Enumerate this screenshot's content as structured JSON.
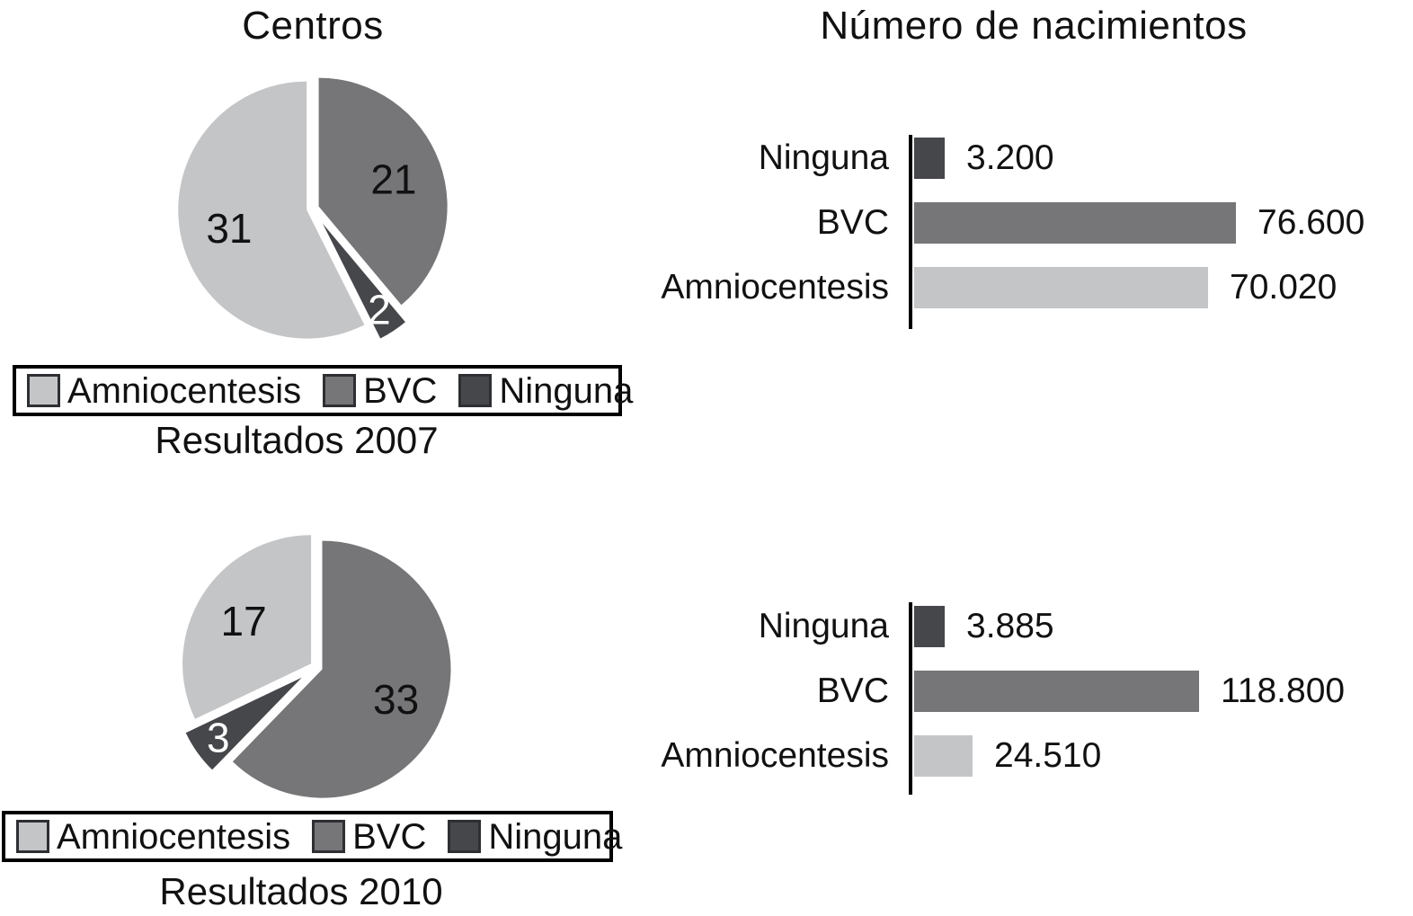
{
  "background": "#ffffff",
  "palette": {
    "amniocentesis": "#c4c5c7",
    "bvc": "#767679",
    "ninguna": "#46474b",
    "axis": "#000000",
    "text": "#111111"
  },
  "chart_data": [
    {
      "id": "pie-2007",
      "type": "pie",
      "title": "Centros",
      "caption": "Resultados 2007",
      "start_angle_deg": 0,
      "direction": "clockwise",
      "legend_position": "bottom",
      "legend": [
        "Amniocentesis",
        "BVC",
        "Ninguna"
      ],
      "slices": [
        {
          "label": "BVC",
          "value": 21,
          "color": "#767679"
        },
        {
          "label": "Ninguna",
          "value": 2,
          "color": "#46474b"
        },
        {
          "label": "Amniocentesis",
          "value": 31,
          "color": "#c4c5c7"
        }
      ]
    },
    {
      "id": "bar-2007",
      "type": "bar",
      "title": "Número de nacimientos",
      "orientation": "horizontal",
      "grid": false,
      "xlim": [
        0,
        80000
      ],
      "categories": [
        "Ninguna",
        "BVC",
        "Amniocentesis"
      ],
      "values": [
        3200,
        76600,
        70020
      ],
      "value_labels": [
        "3.200",
        "76.600",
        "70.020"
      ],
      "colors": [
        "#46474b",
        "#767679",
        "#c4c5c7"
      ]
    },
    {
      "id": "pie-2010",
      "type": "pie",
      "caption": "Resultados 2010",
      "start_angle_deg": 0,
      "direction": "clockwise",
      "legend_position": "bottom",
      "legend": [
        "Amniocentesis",
        "BVC",
        "Ninguna"
      ],
      "slices": [
        {
          "label": "BVC",
          "value": 33,
          "color": "#767679"
        },
        {
          "label": "Ninguna",
          "value": 3,
          "color": "#46474b"
        },
        {
          "label": "Amniocentesis",
          "value": 17,
          "color": "#c4c5c7"
        }
      ]
    },
    {
      "id": "bar-2010",
      "type": "bar",
      "orientation": "horizontal",
      "grid": false,
      "xlim": [
        0,
        140000
      ],
      "categories": [
        "Ninguna",
        "BVC",
        "Amniocentesis"
      ],
      "values": [
        3885,
        118800,
        24510
      ],
      "value_labels": [
        "3.885",
        "118.800",
        "24.510"
      ],
      "colors": [
        "#46474b",
        "#767679",
        "#c4c5c7"
      ]
    }
  ]
}
